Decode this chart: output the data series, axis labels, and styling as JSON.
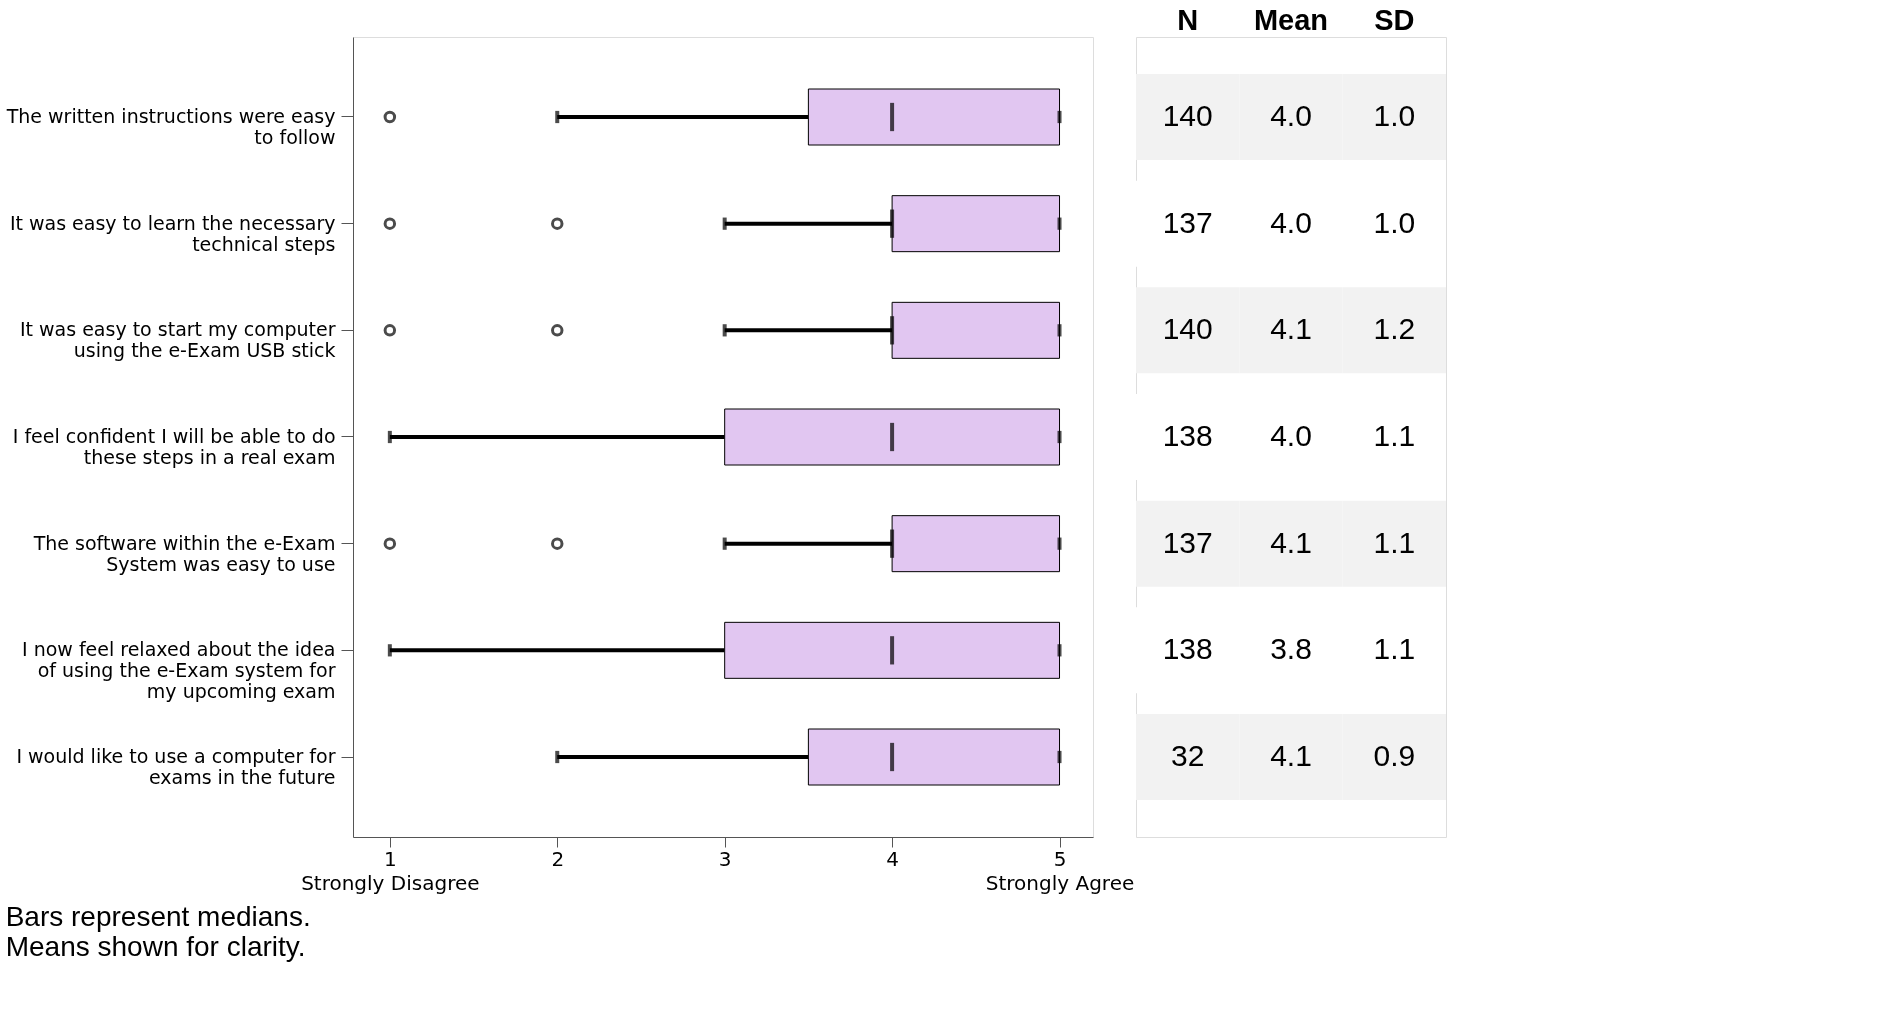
{
  "chart_data": [
    {
      "type": "box",
      "orientation": "horizontal",
      "categories": [
        "The written instructions were easy\nto follow",
        "It was easy to learn the necessary\ntechnical steps",
        "It was easy to start my computer\nusing the e-Exam USB stick",
        "I feel confident I will be able to do\nthese steps in a real exam",
        "The software within the e-Exam\nSystem was easy to use",
        "I now feel relaxed about the idea\nof using the e-Exam system for\nmy upcoming exam",
        "I would like to use a computer for\nexams in the future"
      ],
      "boxes": [
        {
          "low": 2,
          "q1": 3.5,
          "median": 4,
          "q3": 5,
          "high": 5,
          "outliers": [
            1
          ]
        },
        {
          "low": 3,
          "q1": 4,
          "median": 4,
          "q3": 5,
          "high": 5,
          "outliers": [
            1,
            2
          ]
        },
        {
          "low": 3,
          "q1": 4,
          "median": 4,
          "q3": 5,
          "high": 5,
          "outliers": [
            1,
            2
          ]
        },
        {
          "low": 1,
          "q1": 3,
          "median": 4,
          "q3": 5,
          "high": 5
        },
        {
          "low": 3,
          "q1": 4,
          "median": 4,
          "q3": 5,
          "high": 5,
          "outliers": [
            1,
            2
          ]
        },
        {
          "low": 1,
          "q1": 3,
          "median": 4,
          "q3": 5,
          "high": 5
        },
        {
          "low": 2,
          "q1": 3.5,
          "median": 4,
          "q3": 5,
          "high": 5
        }
      ],
      "color": "#e1c6f1",
      "xlim": [
        0.78,
        5.2
      ],
      "xticks": [
        {
          "value": 1,
          "label": "1\nStrongly Disagree"
        },
        2,
        3,
        4,
        {
          "value": 5,
          "label": "5\nStrongly Agree"
        }
      ],
      "grid": false,
      "annotations": [
        "Bars represent medians.\nMeans shown for clarity."
      ]
    },
    {
      "type": "heatmap",
      "categories": [
        "N",
        "Mean",
        "SD"
      ],
      "y_categories": [
        null,
        null,
        null,
        null,
        null,
        null,
        null
      ],
      "cells": [
        [
          140,
          4.0,
          1.0
        ],
        [
          137,
          4.0,
          1.0
        ],
        [
          140,
          4.1,
          1.2
        ],
        [
          138,
          4.0,
          1.1
        ],
        [
          137,
          4.1,
          1.1
        ],
        [
          138,
          3.8,
          1.1
        ],
        [
          32,
          4.1,
          0.9
        ]
      ],
      "cell_labels": [
        [
          "140",
          "4.0",
          "1.0"
        ],
        [
          "137",
          "4.0",
          "1.0"
        ],
        [
          "140",
          "4.1",
          "1.2"
        ],
        [
          "138",
          "4.0",
          "1.1"
        ],
        [
          "137",
          "4.1",
          "1.1"
        ],
        [
          "138",
          "3.8",
          "1.1"
        ],
        [
          "32",
          "4.1",
          "0.9"
        ]
      ],
      "data_labels": true
    }
  ]
}
